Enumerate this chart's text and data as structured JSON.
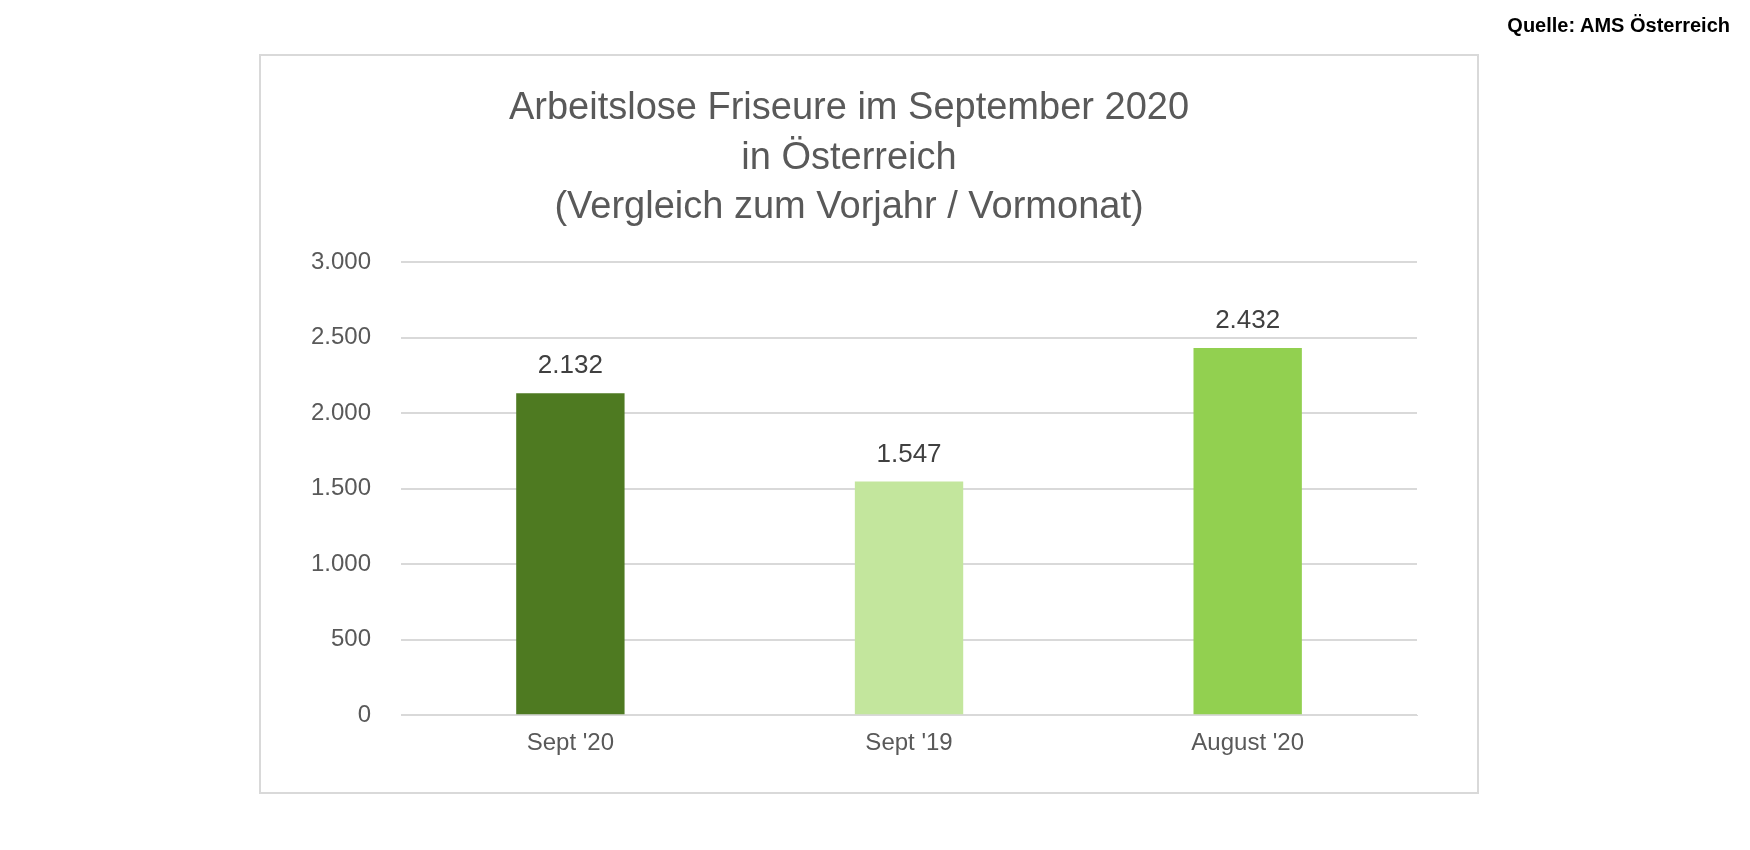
{
  "chart_data": {
    "type": "bar",
    "title": "Arbeitslose Friseure im September 2020\nin Österreich\n(Vergleich zum Vorjahr / Vormonat)",
    "categories": [
      "Sept '20",
      "Sept '19",
      "August '20"
    ],
    "values": [
      2132,
      1547,
      2432
    ],
    "colors": [
      "#4e7a21",
      "#c3e69d",
      "#92d050"
    ],
    "value_labels": [
      "2.132",
      "1.547",
      "2.432"
    ],
    "ylim": [
      0,
      3000
    ],
    "yticks": [
      {
        "value": 0,
        "label": "0"
      },
      {
        "value": 500,
        "label": "500"
      },
      {
        "value": 1000,
        "label": "1.000"
      },
      {
        "value": 1500,
        "label": "1.500"
      },
      {
        "value": 2000,
        "label": "2.000"
      },
      {
        "value": 2500,
        "label": "2.500"
      },
      {
        "value": 3000,
        "label": "3.000"
      }
    ],
    "grid": "y",
    "annotations": [
      "Quelle: AMS Österreich"
    ]
  }
}
